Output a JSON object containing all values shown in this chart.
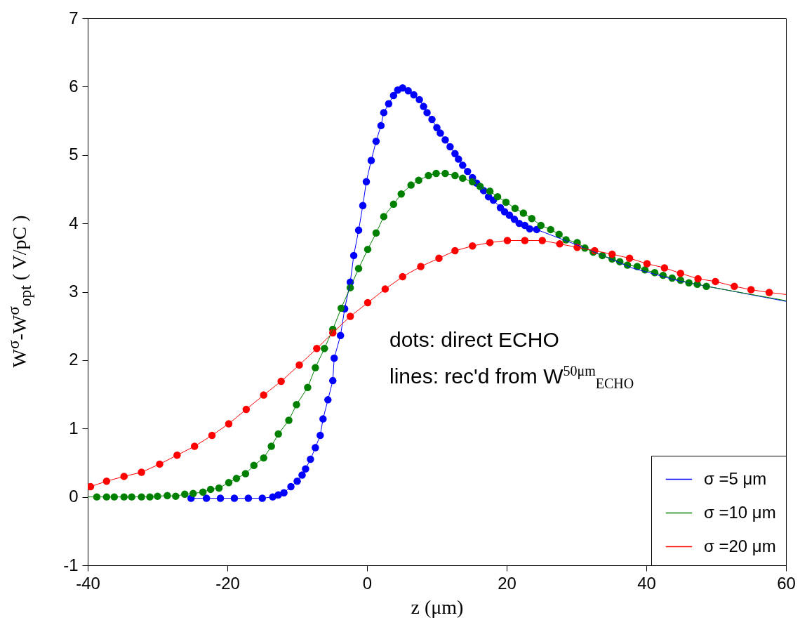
{
  "chart_data": {
    "type": "scatter",
    "xlabel": "z (μm)",
    "ylabel": "W$^{σ}$-W$^{σ}$$_{opt}$ ( V/pC )",
    "annotations": [
      "dots: direct ECHO",
      "lines: rec'd from W$^{50μm}$$_{ECHO}$"
    ],
    "xlim": [
      -40,
      60
    ],
    "xticks": [
      -40,
      -20,
      0,
      20,
      40,
      60
    ],
    "ylim": [
      -1,
      7
    ],
    "yticks": [
      -1,
      0,
      1,
      2,
      3,
      4,
      5,
      6,
      7
    ],
    "grid": false,
    "legend": "bottom right",
    "marker": "circle",
    "series": [
      {
        "name": "σ =5 μm",
        "type": "line",
        "marker": "none",
        "color": "#0000ff",
        "x": [
          -25.2,
          -23,
          -21,
          -19,
          -17,
          -15,
          -13.5,
          -12.7,
          -11.9,
          -10.9,
          -10.0,
          -9.3,
          -8.8,
          -8.1,
          -7.4,
          -6.7,
          -6.3,
          -5.6,
          -4.9,
          -4.7,
          -3.8,
          -3.2,
          -2.4,
          -1.9,
          -1.2,
          -0.6,
          -0.1,
          0.6,
          1.3,
          2.0,
          2.4,
          3.1,
          3.8,
          4.4,
          5.1,
          5.9,
          6.7,
          7.5,
          8.1,
          8.6,
          9.3,
          10.0,
          10.5,
          11.2,
          11.9,
          12.6,
          13.1,
          13.7,
          14.4,
          15.1,
          15.7,
          16.7,
          17.4,
          18.1,
          19.1,
          19.7,
          20.4,
          21.1,
          21.8,
          22.6,
          23.3,
          24.3,
          31.2,
          37.9,
          44.6,
          60
        ],
        "values": [
          -0.02,
          -0.02,
          -0.02,
          -0.02,
          -0.02,
          -0.02,
          0.0,
          0.03,
          0.06,
          0.15,
          0.23,
          0.32,
          0.41,
          0.55,
          0.72,
          0.9,
          1.14,
          1.42,
          1.7,
          2.03,
          2.36,
          2.75,
          3.14,
          3.53,
          3.9,
          4.26,
          4.61,
          4.92,
          5.2,
          5.43,
          5.62,
          5.75,
          5.87,
          5.95,
          5.98,
          5.94,
          5.88,
          5.81,
          5.71,
          5.62,
          5.52,
          5.4,
          5.32,
          5.22,
          5.12,
          5.02,
          4.94,
          4.85,
          4.76,
          4.67,
          4.59,
          4.48,
          4.39,
          4.34,
          4.23,
          4.17,
          4.12,
          4.06,
          4.0,
          3.97,
          3.92,
          3.91,
          3.64,
          3.35,
          3.16,
          2.86
        ]
      },
      {
        "name": "σ =10 μm",
        "type": "line",
        "marker": "none",
        "color": "#008000",
        "x": [
          -40,
          -38.7,
          -37.3,
          -36.2,
          -34.8,
          -33.7,
          -32.3,
          -31.1,
          -30,
          -28.6,
          -27.4,
          -26.1,
          -24.9,
          -23.5,
          -22.4,
          -21.2,
          -19.8,
          -18.7,
          -17.4,
          -16.2,
          -14.8,
          -13.7,
          -12.7,
          -11.2,
          -10.1,
          -8.5,
          -7.4,
          -6.1,
          -4.9,
          -3.7,
          -2.4,
          -1.2,
          0.1,
          1.3,
          2.4,
          3.8,
          4.9,
          6.3,
          7.4,
          8.8,
          9.9,
          11.2,
          12.6,
          13.7,
          15.1,
          16.2,
          17.6,
          18.7,
          19.9,
          21.2,
          22.4,
          23.6,
          24.9,
          26.3,
          27.5,
          28.5,
          30.1,
          31.2,
          32.4,
          33.7,
          35.1,
          36.2,
          37.3,
          38.7,
          39.8,
          41.2,
          42.4,
          43.7,
          44.9,
          46.1,
          47.3,
          48.6,
          54,
          60
        ],
        "values": [
          0,
          0,
          0,
          0,
          0,
          0,
          0,
          0,
          0.01,
          0.02,
          0.01,
          0.04,
          0.05,
          0.07,
          0.11,
          0.13,
          0.21,
          0.27,
          0.34,
          0.46,
          0.57,
          0.74,
          0.92,
          1.12,
          1.35,
          1.6,
          1.89,
          2.17,
          2.45,
          2.76,
          3.06,
          3.34,
          3.62,
          3.86,
          4.1,
          4.28,
          4.43,
          4.56,
          4.63,
          4.7,
          4.73,
          4.73,
          4.7,
          4.66,
          4.61,
          4.54,
          4.47,
          4.39,
          4.31,
          4.22,
          4.15,
          4.07,
          3.97,
          3.91,
          3.84,
          3.76,
          3.72,
          3.64,
          3.58,
          3.53,
          3.48,
          3.44,
          3.39,
          3.37,
          3.32,
          3.28,
          3.24,
          3.2,
          3.17,
          3.13,
          3.11,
          3.08,
          2.98,
          2.87
        ]
      },
      {
        "name": "σ =20 μm",
        "type": "line",
        "marker": "none",
        "color": "#ff0000",
        "x": [
          -40,
          -39.6,
          -37.3,
          -34.8,
          -32.3,
          -29.7,
          -27.2,
          -24.7,
          -22.2,
          -19.8,
          -17.3,
          -14.8,
          -12.3,
          -9.7,
          -7.2,
          -4.9,
          -2.4,
          0.1,
          2.6,
          5.1,
          7.7,
          10.3,
          12.6,
          15.1,
          17.6,
          20.1,
          22.6,
          25.1,
          27.6,
          30.1,
          32.6,
          35.1,
          37.6,
          40.1,
          42.6,
          44.9,
          47.4,
          49.9,
          52.6,
          55.0,
          57.6,
          60
        ],
        "values": [
          0.13,
          0.15,
          0.23,
          0.3,
          0.36,
          0.48,
          0.61,
          0.74,
          0.9,
          1.07,
          1.28,
          1.49,
          1.69,
          1.93,
          2.17,
          2.4,
          2.64,
          2.84,
          3.04,
          3.22,
          3.37,
          3.49,
          3.6,
          3.67,
          3.72,
          3.75,
          3.75,
          3.75,
          3.7,
          3.65,
          3.6,
          3.55,
          3.49,
          3.41,
          3.35,
          3.27,
          3.19,
          3.15,
          3.08,
          3.03,
          2.99,
          2.96
        ]
      },
      {
        "color": "#0000ff",
        "x": [
          -25.2,
          -23,
          -21,
          -19,
          -17,
          -15,
          -13.5,
          -12.7,
          -11.9,
          -10.9,
          -10.0,
          -9.3,
          -8.8,
          -8.1,
          -7.4,
          -6.7,
          -6.3,
          -5.6,
          -4.9,
          -4.7,
          -3.8,
          -3.2,
          -2.4,
          -1.9,
          -1.2,
          -0.6,
          -0.1,
          0.6,
          1.3,
          2.0,
          2.4,
          3.1,
          3.8,
          4.4,
          5.1,
          5.9,
          6.7,
          7.5,
          8.1,
          8.6,
          9.3,
          10.0,
          10.5,
          11.2,
          11.9,
          12.6,
          13.1,
          13.7,
          14.4,
          15.1,
          15.7,
          16.7,
          17.4,
          18.1,
          19.1,
          19.7,
          20.4,
          21.1,
          21.8,
          22.6,
          23.3,
          24.3
        ],
        "values": [
          -0.02,
          -0.02,
          -0.02,
          -0.02,
          -0.02,
          -0.02,
          0.0,
          0.03,
          0.06,
          0.15,
          0.23,
          0.32,
          0.41,
          0.55,
          0.72,
          0.9,
          1.14,
          1.42,
          1.7,
          2.03,
          2.36,
          2.75,
          3.14,
          3.53,
          3.9,
          4.26,
          4.61,
          4.92,
          5.2,
          5.43,
          5.62,
          5.75,
          5.87,
          5.95,
          5.98,
          5.94,
          5.88,
          5.81,
          5.71,
          5.62,
          5.52,
          5.4,
          5.32,
          5.22,
          5.12,
          5.02,
          4.94,
          4.85,
          4.76,
          4.67,
          4.59,
          4.48,
          4.39,
          4.34,
          4.23,
          4.17,
          4.12,
          4.06,
          4.0,
          3.97,
          3.92,
          3.91
        ]
      },
      {
        "color": "#008000",
        "x": [
          -38.7,
          -37.3,
          -36.2,
          -34.8,
          -33.7,
          -32.3,
          -31.1,
          -30,
          -28.6,
          -27.4,
          -26.1,
          -24.9,
          -23.5,
          -22.4,
          -21.2,
          -19.8,
          -18.7,
          -17.4,
          -16.2,
          -14.8,
          -13.7,
          -12.7,
          -11.2,
          -10.1,
          -8.5,
          -7.4,
          -6.1,
          -4.9,
          -3.7,
          -2.4,
          -1.2,
          0.1,
          1.3,
          2.4,
          3.8,
          4.9,
          6.3,
          7.4,
          8.8,
          9.9,
          11.2,
          12.6,
          13.7,
          15.1,
          16.2,
          17.6,
          18.7,
          19.9,
          21.2,
          22.4,
          23.6,
          24.9,
          26.3,
          27.5,
          28.5,
          30.1,
          31.2,
          32.4,
          33.7,
          35.1,
          36.2,
          37.3,
          38.7,
          39.8,
          41.2,
          42.4,
          43.7,
          44.9,
          46.1,
          47.3,
          48.6
        ],
        "values": [
          0,
          0,
          0,
          0,
          0,
          0,
          0,
          0.01,
          0.02,
          0.01,
          0.04,
          0.05,
          0.07,
          0.11,
          0.13,
          0.21,
          0.27,
          0.34,
          0.46,
          0.57,
          0.74,
          0.92,
          1.12,
          1.35,
          1.6,
          1.89,
          2.17,
          2.45,
          2.76,
          3.06,
          3.34,
          3.62,
          3.86,
          4.1,
          4.28,
          4.43,
          4.56,
          4.63,
          4.7,
          4.73,
          4.73,
          4.7,
          4.66,
          4.61,
          4.54,
          4.47,
          4.39,
          4.31,
          4.22,
          4.15,
          4.07,
          3.97,
          3.91,
          3.84,
          3.76,
          3.72,
          3.64,
          3.58,
          3.53,
          3.48,
          3.44,
          3.39,
          3.37,
          3.32,
          3.28,
          3.24,
          3.2,
          3.17,
          3.13,
          3.11,
          3.08
        ]
      },
      {
        "color": "#ff0000",
        "x": [
          -39.6,
          -37.3,
          -34.8,
          -32.3,
          -29.7,
          -27.2,
          -24.7,
          -22.2,
          -19.8,
          -17.3,
          -14.8,
          -12.3,
          -9.7,
          -7.2,
          -4.9,
          -2.4,
          0.1,
          2.6,
          5.1,
          7.7,
          10.3,
          12.6,
          15.1,
          17.6,
          20.1,
          22.6,
          25.1,
          27.6,
          30.1,
          32.6,
          35.1,
          37.6,
          40.1,
          42.6,
          44.9,
          47.4,
          49.9,
          52.6,
          55.0,
          57.6
        ],
        "values": [
          0.15,
          0.23,
          0.3,
          0.36,
          0.48,
          0.61,
          0.74,
          0.9,
          1.07,
          1.28,
          1.49,
          1.69,
          1.93,
          2.17,
          2.4,
          2.64,
          2.84,
          3.04,
          3.22,
          3.37,
          3.49,
          3.6,
          3.67,
          3.72,
          3.75,
          3.75,
          3.75,
          3.7,
          3.65,
          3.6,
          3.55,
          3.49,
          3.41,
          3.35,
          3.27,
          3.19,
          3.15,
          3.08,
          3.03,
          2.99
        ]
      }
    ]
  }
}
